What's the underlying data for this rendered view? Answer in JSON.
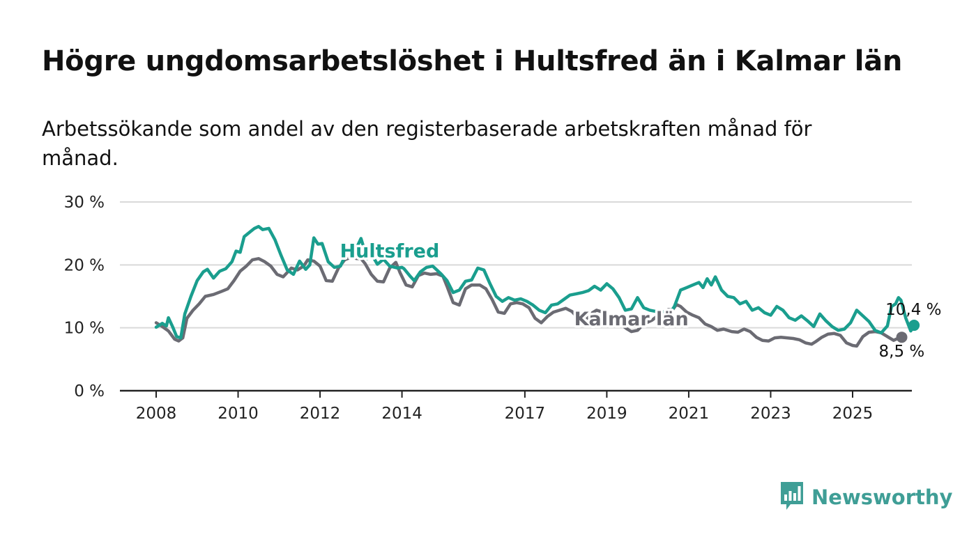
{
  "title": "Högre ungdomsarbetslöshet i Hultsfred än i Kalmar län",
  "subtitle": "Arbetssökande som andel av den registerbaserade arbetskraften månad för månad.",
  "brand": {
    "name": "Newsworthy",
    "color": "#3f9e96",
    "icon": "bar-chart-speech-bubble-icon"
  },
  "chart_data": {
    "type": "line",
    "ylim": [
      0,
      30
    ],
    "yticks": [
      {
        "value": 0,
        "label": "0 %"
      },
      {
        "value": 10,
        "label": "10 %"
      },
      {
        "value": 20,
        "label": "20 %"
      },
      {
        "value": 30,
        "label": "30 %"
      }
    ],
    "xlim": [
      2007.2,
      2026.4
    ],
    "xticks": [
      {
        "value": 2008,
        "label": "2008"
      },
      {
        "value": 2010,
        "label": "2010"
      },
      {
        "value": 2012,
        "label": "2012"
      },
      {
        "value": 2014,
        "label": "2014"
      },
      {
        "value": 2017,
        "label": "2017"
      },
      {
        "value": 2019,
        "label": "2019"
      },
      {
        "value": 2021,
        "label": "2021"
      },
      {
        "value": 2023,
        "label": "2023"
      },
      {
        "value": 2025,
        "label": "2025"
      }
    ],
    "grid": true,
    "series": [
      {
        "name": "Kalmar län",
        "color": "#6b6b73",
        "label_at": {
          "x": 2019.6,
          "y": 10.4
        },
        "end_label": "8,5 %",
        "end_value": 8.5,
        "points": [
          [
            2008.0,
            10.8
          ],
          [
            2008.15,
            10.2
          ],
          [
            2008.3,
            9.5
          ],
          [
            2008.45,
            8.2
          ],
          [
            2008.55,
            7.9
          ],
          [
            2008.65,
            8.4
          ],
          [
            2008.75,
            11.5
          ],
          [
            2008.9,
            12.8
          ],
          [
            2009.05,
            13.8
          ],
          [
            2009.2,
            15.0
          ],
          [
            2009.4,
            15.3
          ],
          [
            2009.6,
            15.8
          ],
          [
            2009.75,
            16.2
          ],
          [
            2009.9,
            17.5
          ],
          [
            2010.05,
            19.0
          ],
          [
            2010.2,
            19.8
          ],
          [
            2010.35,
            20.8
          ],
          [
            2010.5,
            21.0
          ],
          [
            2010.65,
            20.5
          ],
          [
            2010.8,
            19.8
          ],
          [
            2010.95,
            18.5
          ],
          [
            2011.1,
            18.1
          ],
          [
            2011.3,
            19.5
          ],
          [
            2011.45,
            19.2
          ],
          [
            2011.6,
            19.8
          ],
          [
            2011.7,
            20.8
          ],
          [
            2011.85,
            20.6
          ],
          [
            2012.0,
            19.8
          ],
          [
            2012.15,
            17.5
          ],
          [
            2012.3,
            17.4
          ],
          [
            2012.45,
            19.5
          ],
          [
            2012.6,
            20.8
          ],
          [
            2012.75,
            21.2
          ],
          [
            2012.9,
            21.0
          ],
          [
            2013.0,
            21.0
          ],
          [
            2013.1,
            20.2
          ],
          [
            2013.25,
            18.5
          ],
          [
            2013.4,
            17.4
          ],
          [
            2013.55,
            17.3
          ],
          [
            2013.7,
            19.5
          ],
          [
            2013.85,
            20.4
          ],
          [
            2013.95,
            18.8
          ],
          [
            2014.1,
            16.8
          ],
          [
            2014.25,
            16.5
          ],
          [
            2014.4,
            18.3
          ],
          [
            2014.55,
            18.7
          ],
          [
            2014.7,
            18.5
          ],
          [
            2014.85,
            18.6
          ],
          [
            2015.0,
            18.2
          ],
          [
            2015.1,
            16.6
          ],
          [
            2015.25,
            14.0
          ],
          [
            2015.4,
            13.6
          ],
          [
            2015.55,
            16.2
          ],
          [
            2015.7,
            16.8
          ],
          [
            2015.9,
            16.8
          ],
          [
            2016.05,
            16.2
          ],
          [
            2016.2,
            14.5
          ],
          [
            2016.35,
            12.5
          ],
          [
            2016.5,
            12.3
          ],
          [
            2016.65,
            13.8
          ],
          [
            2016.8,
            14.0
          ],
          [
            2016.95,
            13.8
          ],
          [
            2017.1,
            13.2
          ],
          [
            2017.25,
            11.5
          ],
          [
            2017.4,
            10.8
          ],
          [
            2017.55,
            11.8
          ],
          [
            2017.7,
            12.5
          ],
          [
            2017.85,
            12.8
          ],
          [
            2018.0,
            13.1
          ],
          [
            2018.15,
            12.6
          ],
          [
            2018.3,
            11.5
          ],
          [
            2018.45,
            11.0
          ],
          [
            2018.6,
            12.2
          ],
          [
            2018.75,
            12.8
          ],
          [
            2018.9,
            12.5
          ],
          [
            2019.05,
            11.5
          ],
          [
            2019.2,
            10.8
          ],
          [
            2019.35,
            10.5
          ],
          [
            2019.5,
            9.8
          ],
          [
            2019.6,
            9.4
          ],
          [
            2019.75,
            9.6
          ],
          [
            2019.9,
            10.6
          ],
          [
            2020.1,
            11.2
          ],
          [
            2020.3,
            12.2
          ],
          [
            2020.5,
            12.9
          ],
          [
            2020.6,
            12.8
          ],
          [
            2020.7,
            13.7
          ],
          [
            2020.8,
            13.4
          ],
          [
            2020.95,
            12.5
          ],
          [
            2021.1,
            12.0
          ],
          [
            2021.25,
            11.6
          ],
          [
            2021.4,
            10.6
          ],
          [
            2021.55,
            10.2
          ],
          [
            2021.7,
            9.6
          ],
          [
            2021.85,
            9.8
          ],
          [
            2022.05,
            9.4
          ],
          [
            2022.2,
            9.3
          ],
          [
            2022.35,
            9.8
          ],
          [
            2022.5,
            9.4
          ],
          [
            2022.65,
            8.5
          ],
          [
            2022.8,
            8.0
          ],
          [
            2022.95,
            7.9
          ],
          [
            2023.1,
            8.4
          ],
          [
            2023.25,
            8.5
          ],
          [
            2023.4,
            8.4
          ],
          [
            2023.55,
            8.3
          ],
          [
            2023.7,
            8.1
          ],
          [
            2023.85,
            7.6
          ],
          [
            2024.0,
            7.4
          ],
          [
            2024.1,
            7.8
          ],
          [
            2024.25,
            8.5
          ],
          [
            2024.4,
            9.0
          ],
          [
            2024.55,
            9.1
          ],
          [
            2024.7,
            8.8
          ],
          [
            2024.85,
            7.6
          ],
          [
            2025.0,
            7.2
          ],
          [
            2025.1,
            7.1
          ],
          [
            2025.25,
            8.6
          ],
          [
            2025.4,
            9.3
          ],
          [
            2025.55,
            9.4
          ],
          [
            2025.7,
            9.2
          ],
          [
            2025.85,
            8.6
          ],
          [
            2026.0,
            8.0
          ],
          [
            2026.1,
            8.3
          ],
          [
            2026.2,
            8.5
          ]
        ]
      },
      {
        "name": "Hultsfred",
        "color": "#1a9e8e",
        "label_at": {
          "x": 2013.7,
          "y": 21.2
        },
        "end_label": "10,4 %",
        "end_value": 10.4,
        "points": [
          [
            2008.0,
            10.1
          ],
          [
            2008.15,
            10.7
          ],
          [
            2008.25,
            10.3
          ],
          [
            2008.3,
            11.6
          ],
          [
            2008.4,
            10.2
          ],
          [
            2008.5,
            8.6
          ],
          [
            2008.6,
            8.4
          ],
          [
            2008.7,
            12.2
          ],
          [
            2008.85,
            15.0
          ],
          [
            2009.0,
            17.5
          ],
          [
            2009.15,
            18.9
          ],
          [
            2009.25,
            19.3
          ],
          [
            2009.4,
            17.9
          ],
          [
            2009.55,
            19.0
          ],
          [
            2009.7,
            19.4
          ],
          [
            2009.85,
            20.5
          ],
          [
            2009.95,
            22.2
          ],
          [
            2010.05,
            22.0
          ],
          [
            2010.15,
            24.5
          ],
          [
            2010.3,
            25.3
          ],
          [
            2010.4,
            25.8
          ],
          [
            2010.5,
            26.1
          ],
          [
            2010.6,
            25.6
          ],
          [
            2010.75,
            25.8
          ],
          [
            2010.9,
            24.0
          ],
          [
            2011.05,
            21.5
          ],
          [
            2011.2,
            19.2
          ],
          [
            2011.35,
            18.5
          ],
          [
            2011.5,
            20.6
          ],
          [
            2011.65,
            19.3
          ],
          [
            2011.75,
            20.0
          ],
          [
            2011.85,
            24.3
          ],
          [
            2011.95,
            23.3
          ],
          [
            2012.05,
            23.4
          ],
          [
            2012.2,
            20.5
          ],
          [
            2012.35,
            19.6
          ],
          [
            2012.5,
            19.8
          ],
          [
            2012.65,
            22.0
          ],
          [
            2012.8,
            22.6
          ],
          [
            2012.9,
            22.8
          ],
          [
            2013.0,
            24.2
          ],
          [
            2013.15,
            21.0
          ],
          [
            2013.25,
            21.8
          ],
          [
            2013.4,
            20.1
          ],
          [
            2013.55,
            20.9
          ],
          [
            2013.7,
            19.8
          ],
          [
            2013.9,
            19.5
          ],
          [
            2014.0,
            19.6
          ],
          [
            2014.05,
            19.4
          ],
          [
            2014.2,
            18.2
          ],
          [
            2014.3,
            17.5
          ],
          [
            2014.45,
            18.9
          ],
          [
            2014.6,
            19.6
          ],
          [
            2014.75,
            19.8
          ],
          [
            2014.95,
            18.6
          ],
          [
            2015.1,
            17.5
          ],
          [
            2015.25,
            15.6
          ],
          [
            2015.4,
            16.0
          ],
          [
            2015.55,
            17.4
          ],
          [
            2015.7,
            17.6
          ],
          [
            2015.85,
            19.5
          ],
          [
            2016.0,
            19.2
          ],
          [
            2016.15,
            17.0
          ],
          [
            2016.3,
            15.0
          ],
          [
            2016.45,
            14.2
          ],
          [
            2016.6,
            14.8
          ],
          [
            2016.75,
            14.4
          ],
          [
            2016.9,
            14.6
          ],
          [
            2017.05,
            14.2
          ],
          [
            2017.2,
            13.6
          ],
          [
            2017.35,
            12.8
          ],
          [
            2017.5,
            12.4
          ],
          [
            2017.65,
            13.6
          ],
          [
            2017.8,
            13.8
          ],
          [
            2017.95,
            14.5
          ],
          [
            2018.1,
            15.2
          ],
          [
            2018.25,
            15.4
          ],
          [
            2018.4,
            15.6
          ],
          [
            2018.55,
            15.9
          ],
          [
            2018.7,
            16.6
          ],
          [
            2018.85,
            16.0
          ],
          [
            2019.0,
            17.0
          ],
          [
            2019.15,
            16.2
          ],
          [
            2019.3,
            14.8
          ],
          [
            2019.45,
            12.8
          ],
          [
            2019.6,
            13.0
          ],
          [
            2019.75,
            14.8
          ],
          [
            2019.9,
            13.2
          ],
          [
            2020.05,
            12.8
          ],
          [
            2020.2,
            12.6
          ],
          [
            2020.35,
            12.6
          ],
          [
            2020.5,
            11.9
          ],
          [
            2020.65,
            13.4
          ],
          [
            2020.8,
            16.0
          ],
          [
            2020.95,
            16.4
          ],
          [
            2021.1,
            16.8
          ],
          [
            2021.25,
            17.2
          ],
          [
            2021.35,
            16.4
          ],
          [
            2021.45,
            17.8
          ],
          [
            2021.55,
            16.8
          ],
          [
            2021.65,
            18.1
          ],
          [
            2021.8,
            16.0
          ],
          [
            2021.95,
            15.0
          ],
          [
            2022.1,
            14.8
          ],
          [
            2022.25,
            13.8
          ],
          [
            2022.4,
            14.2
          ],
          [
            2022.55,
            12.8
          ],
          [
            2022.7,
            13.2
          ],
          [
            2022.85,
            12.4
          ],
          [
            2023.0,
            12.0
          ],
          [
            2023.15,
            13.4
          ],
          [
            2023.3,
            12.8
          ],
          [
            2023.45,
            11.6
          ],
          [
            2023.6,
            11.2
          ],
          [
            2023.75,
            11.9
          ],
          [
            2023.9,
            11.1
          ],
          [
            2024.05,
            10.2
          ],
          [
            2024.2,
            12.2
          ],
          [
            2024.35,
            11.1
          ],
          [
            2024.5,
            10.2
          ],
          [
            2024.65,
            9.6
          ],
          [
            2024.8,
            9.8
          ],
          [
            2024.95,
            10.8
          ],
          [
            2025.1,
            12.8
          ],
          [
            2025.25,
            11.9
          ],
          [
            2025.4,
            11.0
          ],
          [
            2025.55,
            9.6
          ],
          [
            2025.7,
            9.2
          ],
          [
            2025.85,
            10.3
          ],
          [
            2025.95,
            13.4
          ],
          [
            2026.05,
            13.8
          ],
          [
            2026.12,
            14.8
          ],
          [
            2026.18,
            14.4
          ],
          [
            2026.3,
            11.5
          ],
          [
            2026.42,
            9.5
          ],
          [
            2026.5,
            10.4
          ]
        ]
      }
    ]
  }
}
